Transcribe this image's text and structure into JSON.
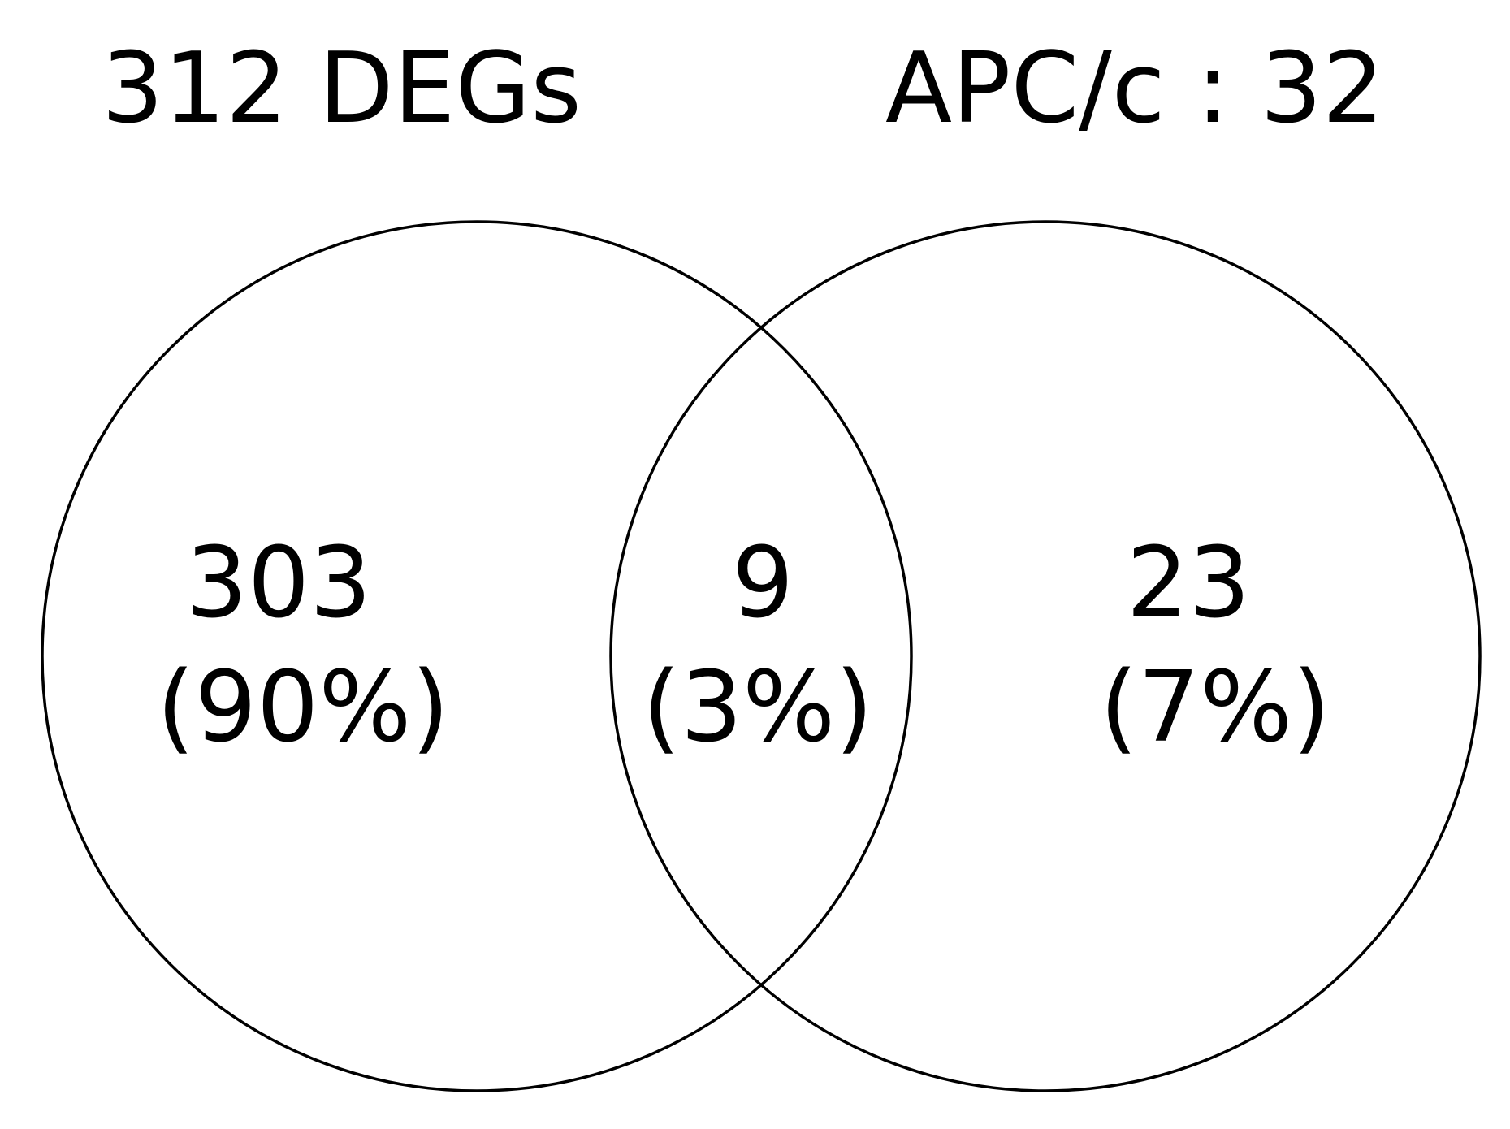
{
  "sets": [
    {
      "label": "312 DEGs"
    },
    {
      "label": "APC/c : 32"
    }
  ],
  "regions": [
    {
      "count": 303,
      "percent": "(90%)"
    },
    {
      "count": 9,
      "percent": "(3%)"
    },
    {
      "count": 23,
      "percent": "(7%)"
    }
  ]
}
